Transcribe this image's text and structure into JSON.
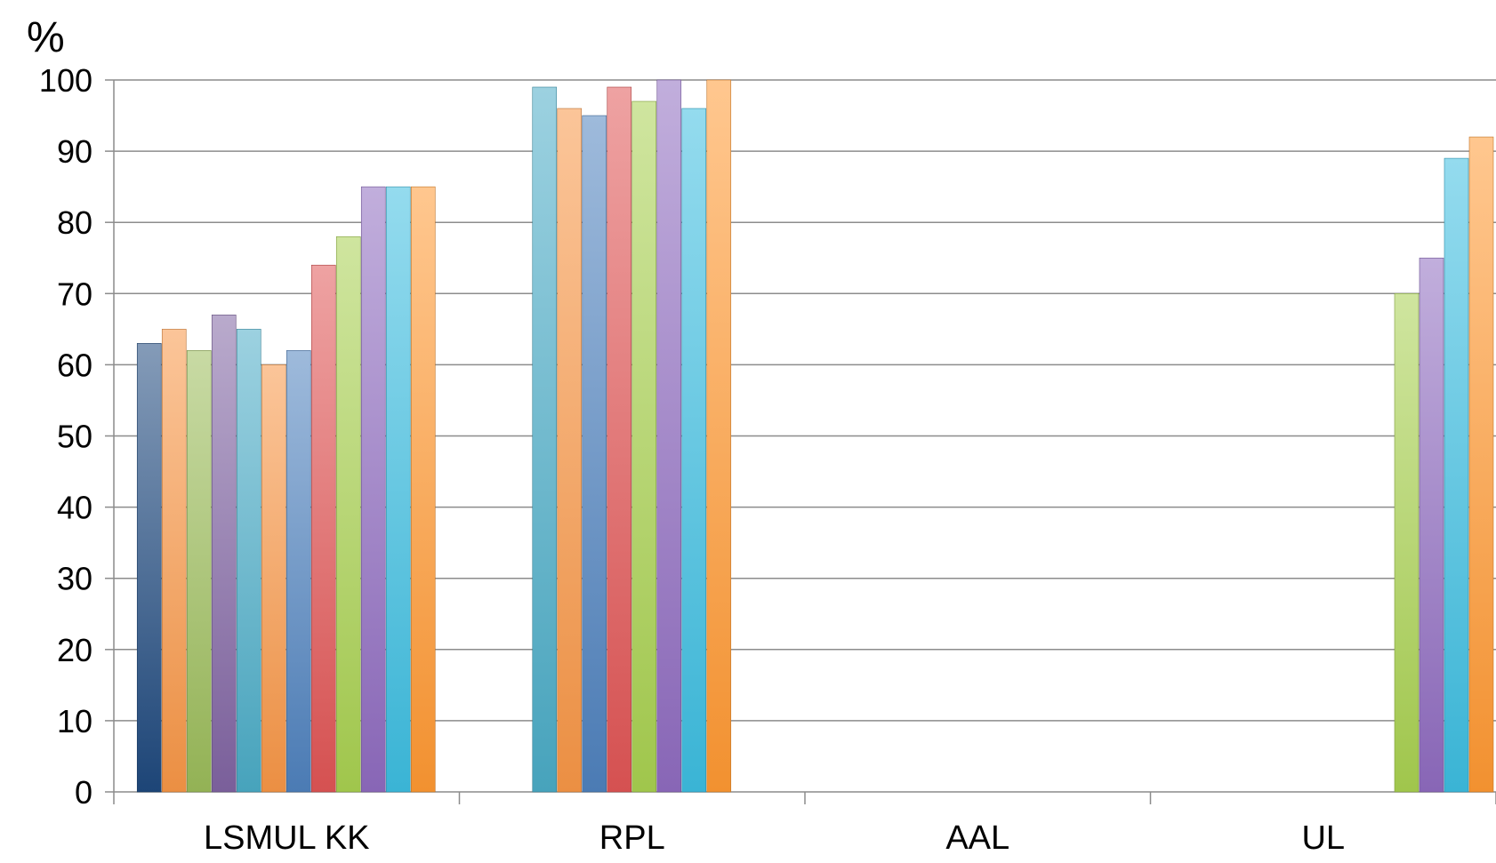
{
  "chart_data": {
    "type": "bar",
    "unit_label": "%",
    "categories": [
      "LSMUL KK",
      "RPL",
      "AAL",
      "UL"
    ],
    "ylim": [
      0,
      100
    ],
    "yticks": [
      0,
      10,
      20,
      30,
      40,
      50,
      60,
      70,
      80,
      90,
      100
    ],
    "grid": true,
    "legend": "none",
    "groups": [
      {
        "category": "LSMUL KK",
        "bars": [
          {
            "value": 63,
            "color": "#1f497d"
          },
          {
            "value": 65,
            "color": "#f79646"
          },
          {
            "value": 62,
            "color": "#9bbb59"
          },
          {
            "value": 67,
            "color": "#8064a2"
          },
          {
            "value": 65,
            "color": "#4bacc6"
          },
          {
            "value": 60,
            "color": "#f79646"
          },
          {
            "value": 62,
            "color": "#4f81bd"
          },
          {
            "value": 74,
            "color": "#e05555"
          },
          {
            "value": 78,
            "color": "#a8d050"
          },
          {
            "value": 85,
            "color": "#8f6bc0"
          },
          {
            "value": 85,
            "color": "#3dbde0"
          },
          {
            "value": 85,
            "color": "#ff9933"
          }
        ]
      },
      {
        "category": "RPL",
        "bars": [
          {
            "value": 99,
            "color": "#4bacc6"
          },
          {
            "value": 96,
            "color": "#f79646"
          },
          {
            "value": 95,
            "color": "#4f81bd"
          },
          {
            "value": 99,
            "color": "#e05555"
          },
          {
            "value": 97,
            "color": "#a8d050"
          },
          {
            "value": 100,
            "color": "#8f6bc0"
          },
          {
            "value": 96,
            "color": "#3dbde0"
          },
          {
            "value": 100,
            "color": "#ff9933"
          }
        ]
      },
      {
        "category": "AAL",
        "bars": []
      },
      {
        "category": "UL",
        "bars": [
          {
            "value": 70,
            "color": "#a8d050"
          },
          {
            "value": 75,
            "color": "#8f6bc0"
          },
          {
            "value": 89,
            "color": "#3dbde0"
          },
          {
            "value": 92,
            "color": "#ff9933"
          }
        ]
      }
    ]
  }
}
